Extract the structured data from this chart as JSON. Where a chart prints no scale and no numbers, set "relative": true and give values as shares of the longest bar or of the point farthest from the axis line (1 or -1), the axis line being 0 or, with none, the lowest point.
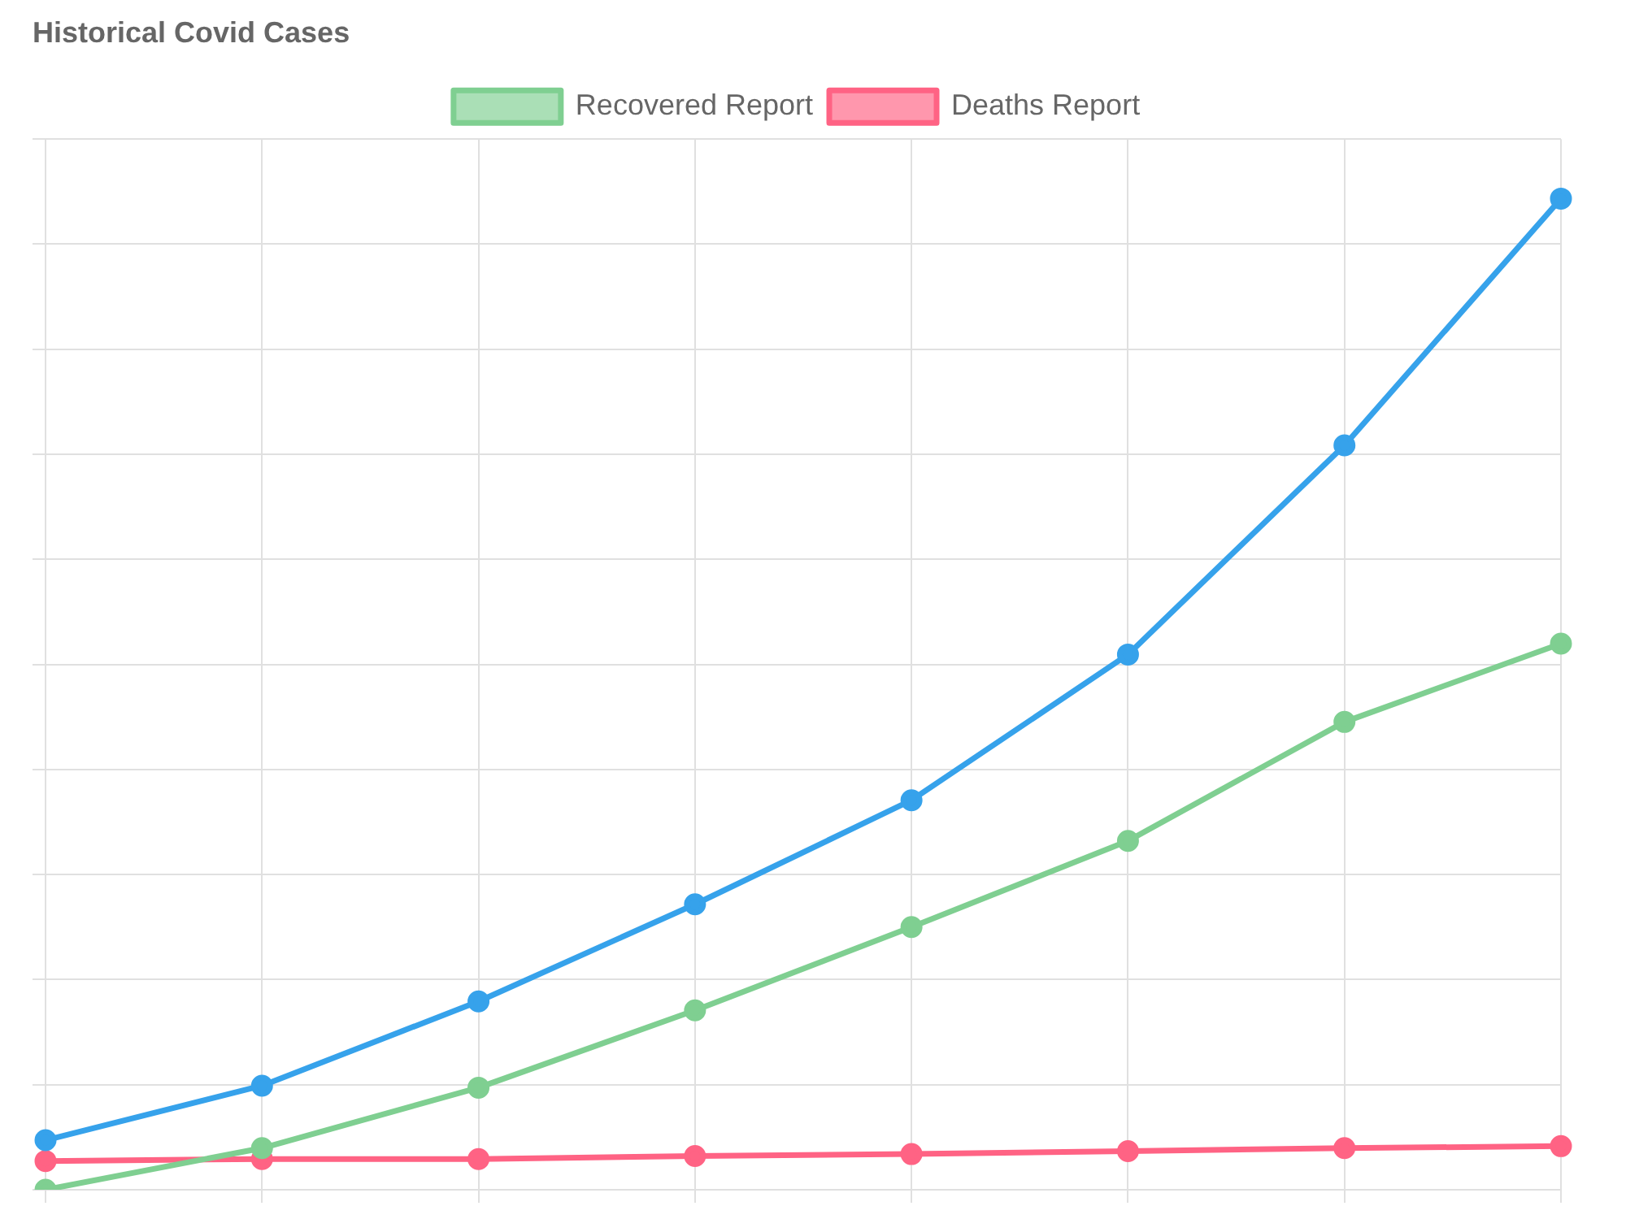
{
  "chart_data": {
    "type": "line",
    "title": "Historical Covid Cases",
    "categories": [
      null,
      null,
      null,
      null,
      null,
      null,
      null,
      null
    ],
    "relative": true,
    "grid": true,
    "legend": "top",
    "marker": "circle",
    "tick_labels": false,
    "series": [
      {
        "color": "#36a2eb",
        "values": [
          0.05,
          0.105,
          0.19,
          0.288,
          0.393,
          0.54,
          0.751,
          1
        ]
      },
      {
        "name": "Recovered Report",
        "color": "#7fcf91",
        "values": [
          0,
          0.042,
          0.103,
          0.181,
          0.265,
          0.352,
          0.472,
          0.551
        ]
      },
      {
        "name": "Deaths Report",
        "color": "#ff6384",
        "values": [
          0.029,
          0.031,
          0.031,
          0.034,
          0.036,
          0.039,
          0.042,
          0.044
        ]
      }
    ]
  }
}
